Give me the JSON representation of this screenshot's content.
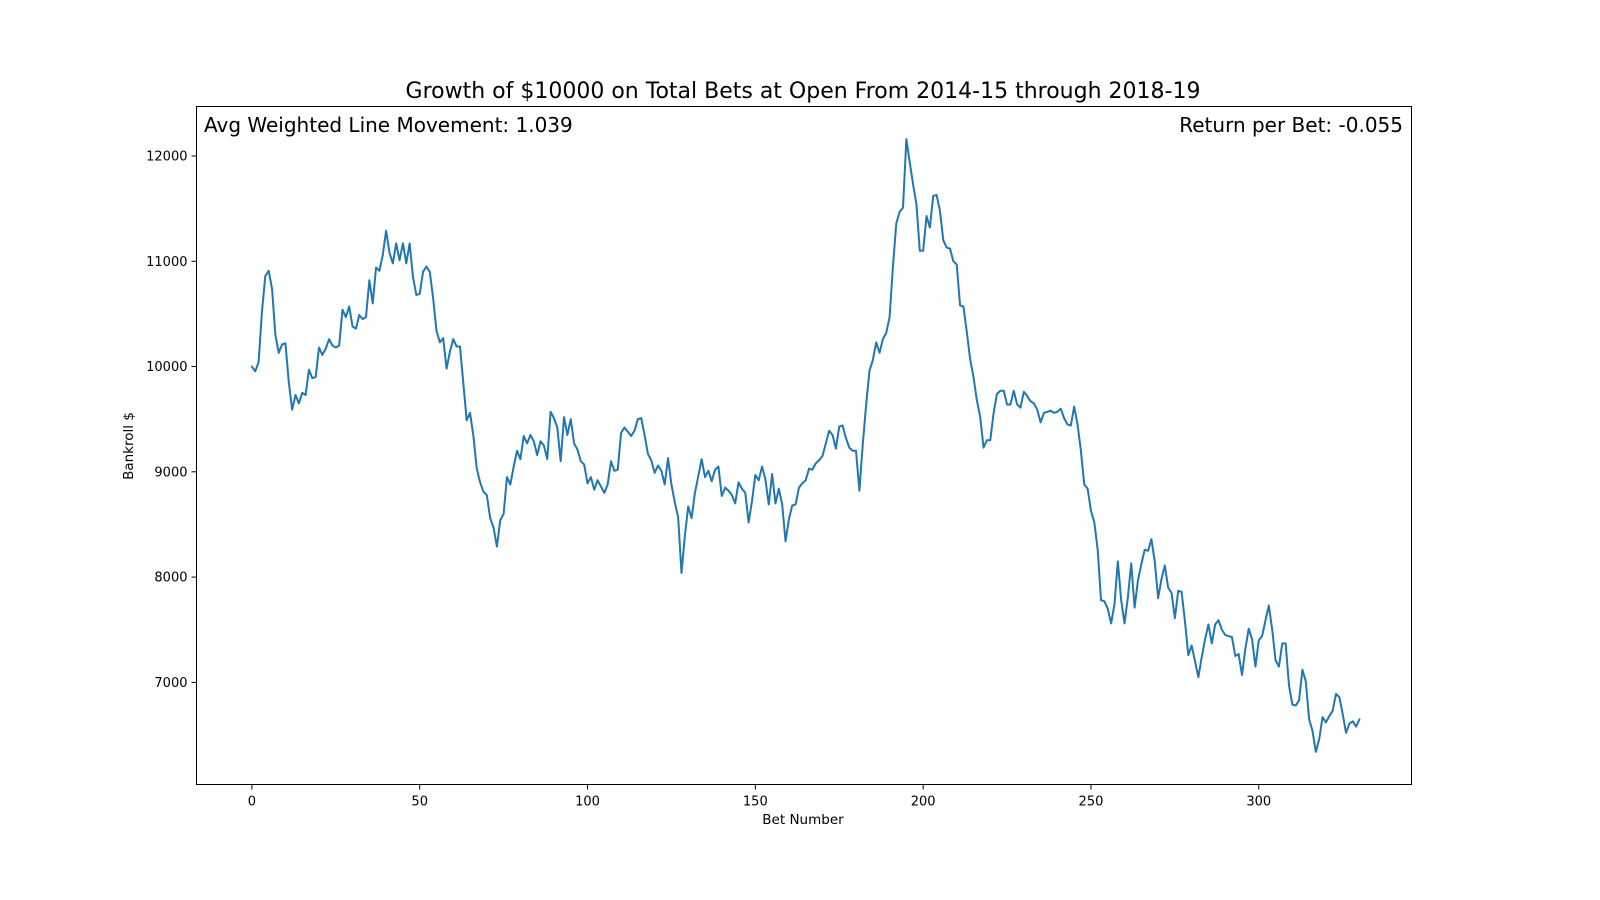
{
  "chart_data": {
    "type": "line",
    "title": "Growth of $10000 on Total Bets at Open From 2014-15 through 2018-19",
    "xlabel": "Bet Number",
    "ylabel": "Bankroll $",
    "xlim": [
      -16.5,
      345.5
    ],
    "ylim": [
      6030,
      12470
    ],
    "xticks": [
      0,
      50,
      100,
      150,
      200,
      250,
      300
    ],
    "yticks": [
      7000,
      8000,
      9000,
      10000,
      11000,
      12000
    ],
    "xtick_labels": [
      "0",
      "50",
      "100",
      "150",
      "200",
      "250",
      "300"
    ],
    "ytick_labels": [
      "7000",
      "8000",
      "9000",
      "10000",
      "11000",
      "12000"
    ],
    "grid": false,
    "legend": "none",
    "annotations": {
      "left": "Avg Weighted Line Movement: 1.039",
      "right": "Return per Bet: -0.055"
    },
    "line_color": "#1f77b4",
    "series": [
      {
        "values": [
          10000,
          9955,
          10040,
          10520,
          10860,
          10910,
          10740,
          10300,
          10130,
          10210,
          10220,
          9850,
          9590,
          9730,
          9650,
          9750,
          9730,
          9970,
          9890,
          9900,
          10180,
          10110,
          10170,
          10260,
          10200,
          10180,
          10200,
          10540,
          10470,
          10570,
          10380,
          10360,
          10490,
          10450,
          10470,
          10820,
          10600,
          10940,
          10910,
          11060,
          11290,
          11080,
          10980,
          11170,
          11010,
          11170,
          10980,
          11170,
          10850,
          10680,
          10690,
          10900,
          10950,
          10900,
          10650,
          10340,
          10230,
          10270,
          9980,
          10140,
          10260,
          10190,
          10190,
          9840,
          9490,
          9560,
          9340,
          9030,
          8900,
          8810,
          8780,
          8560,
          8470,
          8290,
          8540,
          8600,
          8950,
          8880,
          9050,
          9200,
          9120,
          9340,
          9270,
          9350,
          9290,
          9160,
          9290,
          9250,
          9120,
          9570,
          9510,
          9420,
          9100,
          9520,
          9350,
          9500,
          9270,
          9210,
          9100,
          9070,
          8890,
          8950,
          8830,
          8920,
          8860,
          8800,
          8880,
          9100,
          9010,
          9020,
          9370,
          9420,
          9380,
          9340,
          9390,
          9500,
          9510,
          9350,
          9170,
          9110,
          8990,
          9060,
          9010,
          8880,
          9130,
          8880,
          8710,
          8570,
          8040,
          8390,
          8670,
          8560,
          8800,
          8960,
          9120,
          8950,
          9010,
          8910,
          9020,
          9050,
          8770,
          8850,
          8820,
          8780,
          8700,
          8900,
          8840,
          8800,
          8520,
          8720,
          8970,
          8920,
          9050,
          8930,
          8690,
          8980,
          8700,
          8840,
          8690,
          8340,
          8550,
          8680,
          8690,
          8850,
          8890,
          8920,
          9030,
          9020,
          9080,
          9110,
          9150,
          9270,
          9390,
          9350,
          9220,
          9430,
          9440,
          9320,
          9230,
          9200,
          9200,
          8820,
          9260,
          9630,
          9960,
          10060,
          10230,
          10130,
          10260,
          10320,
          10470,
          10950,
          11360,
          11470,
          11510,
          12160,
          11940,
          11730,
          11540,
          11100,
          11100,
          11430,
          11320,
          11620,
          11630,
          11480,
          11200,
          11130,
          11120,
          11000,
          10970,
          10580,
          10570,
          10330,
          10070,
          9900,
          9680,
          9520,
          9230,
          9300,
          9300,
          9560,
          9740,
          9770,
          9770,
          9640,
          9640,
          9770,
          9640,
          9610,
          9760,
          9720,
          9670,
          9650,
          9590,
          9470,
          9560,
          9570,
          9580,
          9560,
          9570,
          9600,
          9510,
          9450,
          9440,
          9620,
          9450,
          9200,
          8880,
          8840,
          8630,
          8520,
          8260,
          7780,
          7770,
          7700,
          7560,
          7740,
          8150,
          7780,
          7560,
          7810,
          8130,
          7710,
          7970,
          8120,
          8260,
          8250,
          8360,
          8150,
          7800,
          7980,
          8110,
          7900,
          7850,
          7610,
          7870,
          7860,
          7580,
          7260,
          7350,
          7200,
          7050,
          7240,
          7410,
          7550,
          7370,
          7550,
          7590,
          7500,
          7450,
          7440,
          7430,
          7250,
          7270,
          7070,
          7320,
          7510,
          7410,
          7150,
          7400,
          7440,
          7590,
          7730,
          7500,
          7210,
          7150,
          7370,
          7370,
          6970,
          6790,
          6780,
          6830,
          7120,
          7010,
          6650,
          6540,
          6340,
          6460,
          6670,
          6620,
          6680,
          6730,
          6890,
          6860,
          6700,
          6520,
          6610,
          6630,
          6580,
          6650
        ]
      }
    ]
  }
}
